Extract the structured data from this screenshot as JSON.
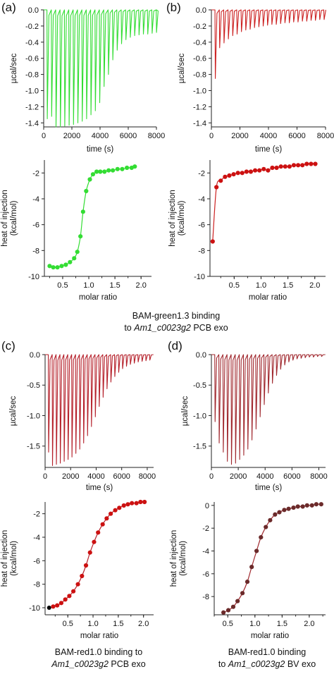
{
  "panels": [
    {
      "id": "a",
      "letter": "(a)",
      "color": "#33dd33",
      "dot_color": "#33dd33",
      "raw": {
        "ylabel": "µcal/sec",
        "xlabel": "time (s)",
        "xlim": [
          0,
          8000
        ],
        "ylim": [
          -1.45,
          0.0
        ],
        "xticks": [
          0,
          2000,
          4000,
          6000,
          8000
        ],
        "xtick_labels": [
          "0",
          "2000",
          "4000",
          "6000",
          "8000"
        ],
        "yticks": [
          0.0,
          -0.2,
          -0.4,
          -0.6,
          -0.8,
          -1.0,
          -1.2,
          -1.4
        ],
        "ytick_labels": [
          "0.0",
          "-0.2",
          "-0.4",
          "-0.6",
          "-0.8",
          "-1.0",
          "-1.2",
          "-1.4"
        ],
        "inj_start": 230,
        "inj_interval": 310,
        "peaks": [
          -1.35,
          -1.32,
          -1.45,
          -1.45,
          -1.44,
          -1.43,
          -1.42,
          -1.4,
          -1.38,
          -1.35,
          -1.3,
          -1.25,
          -1.15,
          -0.95,
          -0.8,
          -0.62,
          -0.5,
          -0.42,
          -0.37,
          -0.34,
          -0.32,
          -0.31,
          -0.3,
          -0.3,
          -0.29,
          -0.28
        ]
      },
      "isotherm": {
        "ylabel": "heat of injection (kcal/mol)",
        "xlabel": "molar ratio",
        "xlim": [
          0.15,
          2.2
        ],
        "ylim": [
          -10,
          -1
        ],
        "xticks": [
          0.5,
          1.0,
          1.5,
          2.0
        ],
        "xtick_labels": [
          "0.5",
          "1.0",
          "1.5",
          "2.0"
        ],
        "yticks": [
          -2,
          -4,
          -6,
          -8,
          -10
        ],
        "ytick_labels": [
          "-2",
          "-4",
          "-6",
          "-8",
          "-10"
        ],
        "x": [
          0.25,
          0.32,
          0.4,
          0.48,
          0.56,
          0.64,
          0.72,
          0.78,
          0.84,
          0.89,
          0.95,
          1.02,
          1.08,
          1.15,
          1.22,
          1.3,
          1.38,
          1.46,
          1.55,
          1.64,
          1.73,
          1.82,
          1.88
        ],
        "y": [
          -9.2,
          -9.3,
          -9.3,
          -9.2,
          -9.1,
          -8.9,
          -8.6,
          -8.1,
          -6.9,
          -5.0,
          -3.4,
          -2.5,
          -2.1,
          -1.9,
          -1.9,
          -1.9,
          -1.8,
          -1.8,
          -1.7,
          -1.7,
          -1.6,
          -1.6,
          -1.5
        ]
      }
    },
    {
      "id": "b",
      "letter": "(b)",
      "color": "#cc2222",
      "dot_color": "#cc1111",
      "raw": {
        "ylabel": "µcal/sec",
        "xlabel": "time (s)",
        "xlim": [
          0,
          8000
        ],
        "ylim": [
          -1.45,
          0.0
        ],
        "xticks": [
          0,
          2000,
          4000,
          6000,
          8000
        ],
        "xtick_labels": [
          "0",
          "2000",
          "4000",
          "6000",
          "8000"
        ],
        "yticks": [
          0.0,
          -0.2,
          -0.4,
          -0.6,
          -0.8,
          -1.0,
          -1.2,
          -1.4
        ],
        "ytick_labels": [
          "0.0",
          "-0.2",
          "-0.4",
          "-0.6",
          "-0.8",
          "-1.0",
          "-1.2",
          "-1.4"
        ],
        "inj_start": 250,
        "inj_interval": 305,
        "peaks": [
          -0.85,
          -0.47,
          -0.41,
          -0.36,
          -0.32,
          -0.3,
          -0.27,
          -0.25,
          -0.24,
          -0.22,
          -0.21,
          -0.2,
          -0.19,
          -0.18,
          -0.18,
          -0.17,
          -0.16,
          -0.16,
          -0.15,
          -0.15,
          -0.14,
          -0.14,
          -0.13,
          -0.13,
          -0.12,
          -0.12
        ]
      },
      "isotherm": {
        "ylabel": "heat of injection (kcal/mol)",
        "xlabel": "molar ratio",
        "xlim": [
          0.05,
          2.2
        ],
        "ylim": [
          -10,
          -1
        ],
        "xticks": [
          0.5,
          1.0,
          1.5,
          2.0
        ],
        "xtick_labels": [
          "0.5",
          "1.0",
          "1.5",
          "2.0"
        ],
        "yticks": [
          -2,
          -4,
          -6,
          -8,
          -10
        ],
        "ytick_labels": [
          "-2",
          "-4",
          "-6",
          "-8",
          "-10"
        ],
        "x": [
          0.1,
          0.17,
          0.25,
          0.33,
          0.41,
          0.49,
          0.57,
          0.65,
          0.73,
          0.81,
          0.89,
          0.97,
          1.05,
          1.13,
          1.21,
          1.29,
          1.37,
          1.45,
          1.53,
          1.61,
          1.69,
          1.77,
          1.85,
          1.93,
          2.01
        ],
        "y": [
          -7.3,
          -3.1,
          -2.6,
          -2.3,
          -2.2,
          -2.1,
          -2.0,
          -2.0,
          -1.9,
          -1.9,
          -1.8,
          -1.8,
          -1.7,
          -1.8,
          -1.6,
          -1.6,
          -1.5,
          -1.5,
          -1.5,
          -1.4,
          -1.4,
          -1.4,
          -1.3,
          -1.3,
          -1.3
        ]
      }
    },
    {
      "id": "c",
      "letter": "(c)",
      "color": "#b5202a",
      "dot_color": "#cc1111",
      "raw": {
        "ylabel": "µcal/sec",
        "xlabel": "time (s)",
        "xlim": [
          0,
          8500
        ],
        "ylim": [
          -1.85,
          0.0
        ],
        "xticks": [
          0,
          2000,
          4000,
          6000,
          8000
        ],
        "xtick_labels": [
          "0",
          "2000",
          "4000",
          "6000",
          "8000"
        ],
        "yticks": [
          0.0,
          -0.5,
          -1.0,
          -1.5
        ],
        "ytick_labels": [
          "0.0",
          "-0.5",
          "-1.0",
          "-1.5"
        ],
        "inj_start": 250,
        "inj_interval": 305,
        "peaks": [
          -1.6,
          -1.82,
          -1.8,
          -1.78,
          -1.75,
          -1.72,
          -1.68,
          -1.62,
          -1.55,
          -1.45,
          -1.33,
          -1.18,
          -1.02,
          -0.85,
          -0.7,
          -0.56,
          -0.45,
          -0.36,
          -0.29,
          -0.23,
          -0.19,
          -0.16,
          -0.14,
          -0.12,
          -0.11,
          -0.1,
          -0.09
        ]
      },
      "isotherm": {
        "ylabel": "heat of injection (kcal/mol)",
        "xlabel": "molar ratio",
        "xlim": [
          0.05,
          2.2
        ],
        "ylim": [
          -10.6,
          -1.0
        ],
        "xticks": [
          0.5,
          1.0,
          1.5,
          2.0
        ],
        "xtick_labels": [
          "0.5",
          "1.0",
          "1.5",
          "2.0"
        ],
        "yticks": [
          -2,
          -4,
          -6,
          -8,
          -10
        ],
        "ytick_labels": [
          "-2",
          "-4",
          "-6",
          "-8",
          "-10"
        ],
        "special_point": {
          "x": 0.13,
          "y": -10.0,
          "color": "#000000"
        },
        "x": [
          0.21,
          0.29,
          0.37,
          0.45,
          0.53,
          0.61,
          0.7,
          0.78,
          0.86,
          0.94,
          1.02,
          1.1,
          1.19,
          1.27,
          1.35,
          1.44,
          1.52,
          1.61,
          1.69,
          1.77,
          1.86,
          1.94,
          2.02
        ],
        "y": [
          -9.9,
          -9.8,
          -9.6,
          -9.3,
          -9.0,
          -8.6,
          -8.0,
          -7.3,
          -6.4,
          -5.3,
          -4.4,
          -3.6,
          -2.9,
          -2.4,
          -2.0,
          -1.7,
          -1.5,
          -1.3,
          -1.2,
          -1.1,
          -1.1,
          -1.0,
          -1.0
        ]
      }
    },
    {
      "id": "d",
      "letter": "(d)",
      "color": "#a0282e",
      "dot_color": "#6b2a2a",
      "raw": {
        "ylabel": "µcal/sec",
        "xlabel": "time (s)",
        "xlim": [
          0,
          8500
        ],
        "ylim": [
          -1.85,
          0.0
        ],
        "xticks": [
          0,
          2000,
          4000,
          6000,
          8000
        ],
        "xtick_labels": [
          "0",
          "2000",
          "4000",
          "6000",
          "8000"
        ],
        "yticks": [
          0.0,
          -0.5,
          -1.0,
          -1.5
        ],
        "ytick_labels": [
          "0.0",
          "-0.5",
          "-1.0",
          "-1.5"
        ],
        "inj_start": 250,
        "inj_interval": 305,
        "peaks": [
          -1.1,
          -1.45,
          -1.6,
          -1.75,
          -1.8,
          -1.78,
          -1.72,
          -1.65,
          -1.55,
          -1.4,
          -1.22,
          -1.02,
          -0.82,
          -0.63,
          -0.47,
          -0.34,
          -0.24,
          -0.17,
          -0.12,
          -0.09,
          -0.07,
          -0.06,
          -0.05,
          -0.04,
          -0.04,
          -0.03,
          -0.03
        ]
      },
      "isotherm": {
        "ylabel": "heat of injection (kcal/mol)",
        "xlabel": "molar ratio",
        "xlim": [
          0.25,
          2.3
        ],
        "ylim": [
          -9.6,
          0.3
        ],
        "xticks": [
          0.5,
          1.0,
          1.5,
          2.0
        ],
        "xtick_labels": [
          "0.5",
          "1.0",
          "1.5",
          "2.0"
        ],
        "yticks": [
          0,
          -2,
          -4,
          -6,
          -8
        ],
        "ytick_labels": [
          "0",
          "-2",
          "-4",
          "-6",
          "-8"
        ],
        "x": [
          0.42,
          0.51,
          0.6,
          0.68,
          0.77,
          0.86,
          0.94,
          1.03,
          1.11,
          1.2,
          1.28,
          1.37,
          1.45,
          1.54,
          1.62,
          1.71,
          1.79,
          1.88,
          1.96,
          2.05,
          2.13,
          2.22
        ],
        "y": [
          -9.4,
          -9.2,
          -8.9,
          -8.4,
          -7.7,
          -6.7,
          -5.4,
          -4.0,
          -2.8,
          -1.9,
          -1.3,
          -0.8,
          -0.6,
          -0.4,
          -0.3,
          -0.2,
          -0.1,
          -0.1,
          0.0,
          0.0,
          0.1,
          0.1
        ]
      }
    }
  ],
  "captions": {
    "ab_line1": "BAM-green1.3 binding",
    "ab_line2_pre": "to ",
    "ab_line2_italic": "Am1_c0023g2",
    "ab_line2_post": " PCB exo",
    "c_line1": "BAM-red1.0 binding to",
    "c_line2_italic": "Am1_c0023g2",
    "c_line2_post": " PCB exo",
    "d_line1": "BAM-red1.0 binding",
    "d_line2_pre": "to ",
    "d_line2_italic": "Am1_c0023g2",
    "d_line2_post": " BV exo"
  }
}
